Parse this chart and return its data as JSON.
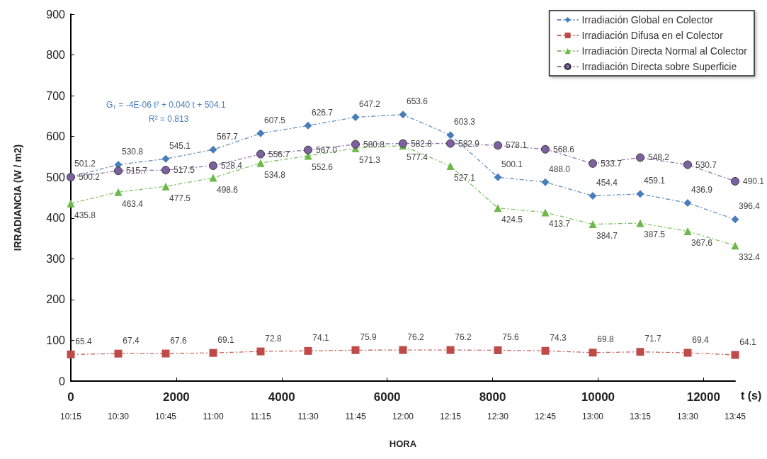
{
  "chart_data": {
    "type": "line",
    "xlabel": "t (s)",
    "x2label": "HORA",
    "ylabel": "IRRADIANCIA (W / m2)",
    "x": [
      0,
      900,
      1800,
      2700,
      3600,
      4500,
      5400,
      6300,
      7200,
      8100,
      9000,
      9900,
      10800,
      11700,
      12600
    ],
    "xlim": [
      0,
      12600
    ],
    "xticks": [
      0,
      2000,
      4000,
      6000,
      8000,
      10000,
      12000
    ],
    "x2lim": [
      10.25,
      13.75
    ],
    "x2ticks": [
      {
        "value": 10.25,
        "label": "10:15"
      },
      {
        "value": 10.5,
        "label": "10:30"
      },
      {
        "value": 10.75,
        "label": "10:45"
      },
      {
        "value": 11,
        "label": "11:00"
      },
      {
        "value": 11.25,
        "label": "11:15"
      },
      {
        "value": 11.5,
        "label": "11:30"
      },
      {
        "value": 11.75,
        "label": "11:45"
      },
      {
        "value": 12,
        "label": "12:00"
      },
      {
        "value": 12.25,
        "label": "12:15"
      },
      {
        "value": 12.5,
        "label": "12:30"
      },
      {
        "value": 12.75,
        "label": "12:45"
      },
      {
        "value": 13,
        "label": "13:00"
      },
      {
        "value": 13.25,
        "label": "13:15"
      },
      {
        "value": 13.5,
        "label": "13:30"
      },
      {
        "value": 13.75,
        "label": "13:45"
      }
    ],
    "ylim": [
      0,
      900
    ],
    "yticks": [
      0,
      100,
      200,
      300,
      400,
      500,
      600,
      700,
      800,
      900
    ],
    "grid": false,
    "legend": "top right",
    "line_style": "dashed",
    "annotations": [
      "G$_{T}$ = -4E-06 t² + 0.040 t + 504.1",
      "R² = 0.813"
    ],
    "series": [
      {
        "name": "Irradiación Global en Colector",
        "color": "#4a7ebb",
        "marker": "diamond",
        "values": [
          501.2,
          530.8,
          545.1,
          567.7,
          607.5,
          626.7,
          647.2,
          653.6,
          603.3,
          500.1,
          488.0,
          454.4,
          459.1,
          436.9,
          396.4
        ],
        "value_labels": [
          "501.2",
          "530.8",
          "545.1",
          "567.7",
          "607.5",
          "626.7",
          "647.2",
          "653.6",
          "603.3",
          "500.1",
          "488.0",
          "454.4",
          "459.1",
          "436.9",
          "396.4"
        ]
      },
      {
        "name": "Irradiación Difusa en el Colector",
        "color": "#be4b48",
        "marker": "square",
        "values": [
          65.4,
          67.4,
          67.6,
          69.1,
          72.8,
          74.1,
          75.9,
          76.2,
          76.2,
          75.6,
          74.3,
          69.8,
          71.7,
          69.4,
          64.1
        ],
        "value_labels": [
          "65.4",
          "67.4",
          "67.6",
          "69.1",
          "72.8",
          "74.1",
          "75.9",
          "76.2",
          "76.2",
          "75.6",
          "74.3",
          "69.8",
          "71.7",
          "69.4",
          "64.1"
        ]
      },
      {
        "name": "Irradiación Directa Normal al Colector",
        "color": "#6cb84a",
        "marker": "triangle",
        "values": [
          435.8,
          463.4,
          477.5,
          498.6,
          534.8,
          552.6,
          571.3,
          577.4,
          527.1,
          424.5,
          413.7,
          384.7,
          387.5,
          367.6,
          332.4
        ],
        "value_labels": [
          "435.8",
          "463.4",
          "477.5",
          "498.6",
          "534.8",
          "552.6",
          "571.3",
          "577.4",
          "527.1",
          "424.5",
          "413.7",
          "384.7",
          "387.5",
          "367.6",
          "332.4"
        ]
      },
      {
        "name": "Irradiación Directa sobre Superficie",
        "color": "#7d60a0",
        "marker": "circle",
        "values": [
          500.2,
          515.7,
          517.5,
          528.4,
          556.7,
          567.0,
          580.8,
          582.8,
          582.9,
          578.1,
          568.6,
          533.7,
          548.2,
          530.7,
          490.1
        ],
        "value_labels": [
          "500.2",
          "515.7",
          "517.5",
          "528.4",
          "556.7",
          "567.0",
          "580.8",
          "582.8",
          "582.9",
          "578.1",
          "568.6",
          "533.7",
          "548.2",
          "530.7",
          "490.1"
        ]
      }
    ]
  }
}
